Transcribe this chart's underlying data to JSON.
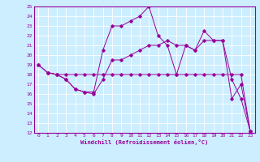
{
  "title": "",
  "xlabel": "Windchill (Refroidissement éolien,°C)",
  "bg_color": "#cceeff",
  "line_color": "#990099",
  "grid_color": "#ffffff",
  "xlim": [
    -0.5,
    23.5
  ],
  "ylim": [
    12,
    25
  ],
  "xticks": [
    0,
    1,
    2,
    3,
    4,
    5,
    6,
    7,
    8,
    9,
    10,
    11,
    12,
    13,
    14,
    15,
    16,
    17,
    18,
    19,
    20,
    21,
    22,
    23
  ],
  "yticks": [
    12,
    13,
    14,
    15,
    16,
    17,
    18,
    19,
    20,
    21,
    22,
    23,
    24,
    25
  ],
  "line1_x": [
    0,
    1,
    2,
    3,
    4,
    5,
    6,
    7,
    8,
    9,
    10,
    11,
    12,
    13,
    14,
    15,
    16,
    17,
    18,
    19,
    20,
    21,
    22,
    23
  ],
  "line1_y": [
    19,
    18.2,
    18,
    17.5,
    16.5,
    16.2,
    16,
    17.5,
    19.5,
    19.5,
    20,
    20.5,
    21,
    21,
    21.5,
    21,
    21,
    20.5,
    21.5,
    21.5,
    21.5,
    17.5,
    15.5,
    12.2
  ],
  "line2_x": [
    0,
    1,
    2,
    3,
    4,
    5,
    6,
    7,
    8,
    9,
    10,
    11,
    12,
    13,
    14,
    15,
    16,
    17,
    18,
    19,
    20,
    21,
    22,
    23
  ],
  "line2_y": [
    19,
    18.2,
    18,
    18,
    18,
    18,
    18,
    18,
    18,
    18,
    18,
    18,
    18,
    18,
    18,
    18,
    18,
    18,
    18,
    18,
    18,
    18,
    18,
    12.2
  ],
  "line3_x": [
    1,
    2,
    3,
    4,
    5,
    6,
    7,
    8,
    9,
    10,
    11,
    12,
    13,
    14,
    15,
    16,
    17,
    18,
    19,
    20,
    21,
    22,
    23
  ],
  "line3_y": [
    18.2,
    18,
    17.5,
    16.5,
    16.2,
    16.2,
    20.5,
    23,
    23,
    23.5,
    24,
    25,
    22,
    21,
    18,
    21,
    20.5,
    22.5,
    21.5,
    21.5,
    15.5,
    17,
    12.2
  ],
  "tick_fontsize": 4.5,
  "xlabel_fontsize": 5.0
}
